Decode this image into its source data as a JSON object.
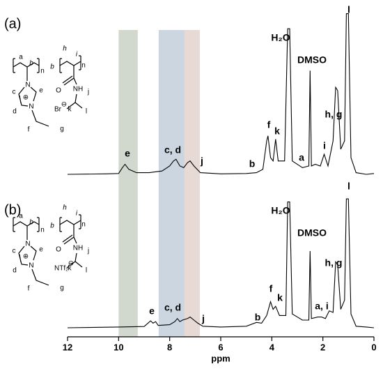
{
  "chart_data": [
    {
      "type": "line",
      "panel_label": "(a)",
      "color": "#000000",
      "xlim": [
        12,
        0
      ],
      "ylim": [
        0,
        100
      ],
      "x": [
        12,
        10.5,
        10.0,
        9.85,
        9.75,
        9.6,
        9.3,
        8.8,
        8.3,
        8.0,
        7.85,
        7.75,
        7.6,
        7.45,
        7.3,
        7.2,
        7.05,
        6.8,
        6.0,
        5.0,
        4.6,
        4.35,
        4.2,
        4.15,
        4.05,
        3.95,
        3.85,
        3.75,
        3.5,
        3.38,
        3.3,
        3.2,
        2.8,
        2.55,
        2.5,
        2.45,
        2.3,
        2.1,
        1.95,
        1.8,
        1.6,
        1.5,
        1.42,
        1.3,
        1.15,
        1.08,
        1.0,
        0.9,
        0.7,
        0.3,
        0
      ],
      "values": [
        0,
        0.3,
        0.5,
        4,
        6,
        3,
        1,
        1,
        2,
        5,
        8,
        9,
        5,
        4,
        7,
        8,
        5,
        1,
        0.3,
        0.5,
        1,
        3,
        20,
        23,
        10,
        8,
        21,
        8,
        8,
        87,
        87,
        8,
        4,
        5,
        62,
        5,
        6,
        5,
        12,
        5,
        20,
        52,
        50,
        15,
        20,
        96,
        96,
        10,
        1,
        0,
        0.5
      ],
      "annotations": [
        "e",
        "c, d",
        "j",
        "b",
        "f",
        "k",
        "H₂O",
        "DMSO",
        "a",
        "i",
        "h, g",
        "l"
      ],
      "bands": [
        {
          "range": [
            10.0,
            9.25
          ],
          "color": "#c9d2c6"
        },
        {
          "range": [
            8.43,
            7.42
          ],
          "color": "#c2cfda"
        },
        {
          "range": [
            7.42,
            6.82
          ],
          "color": "#e3d2cc"
        }
      ],
      "structure": [
        "a",
        "b",
        "n",
        "b",
        "h",
        "i",
        "n",
        "O",
        "NH",
        "j",
        "k",
        "l",
        "c",
        "e",
        "d",
        "f",
        "g",
        "N",
        "N",
        "Br",
        "⊖",
        "⊕"
      ]
    },
    {
      "type": "line",
      "panel_label": "(b)",
      "color": "#000000",
      "xlim": [
        12,
        0
      ],
      "ylim": [
        0,
        100
      ],
      "xticks": [
        12,
        10,
        8,
        6,
        4,
        2,
        0
      ],
      "xlabel": "ppm",
      "x": [
        12,
        10,
        9.0,
        8.85,
        8.75,
        8.65,
        8.55,
        8.45,
        8.0,
        7.8,
        7.7,
        7.6,
        7.5,
        7.3,
        7.2,
        7.05,
        6.9,
        6.7,
        6.0,
        5.0,
        4.6,
        4.4,
        4.2,
        4.05,
        3.95,
        3.85,
        3.7,
        3.45,
        3.38,
        3.3,
        3.2,
        2.8,
        2.55,
        2.5,
        2.45,
        2.2,
        2.05,
        1.9,
        1.75,
        1.6,
        1.5,
        1.42,
        1.3,
        1.15,
        1.08,
        1.0,
        0.9,
        0.7,
        0.3,
        0
      ],
      "values": [
        0,
        0.5,
        0.8,
        3,
        4.5,
        3,
        4,
        1.5,
        2,
        4,
        6,
        4,
        5,
        6,
        7,
        5,
        3,
        1,
        0.5,
        1,
        3.5,
        3,
        8,
        17,
        12,
        14,
        8,
        8,
        82,
        82,
        9,
        5,
        5,
        50,
        6,
        7,
        7,
        6,
        11,
        10,
        43,
        41,
        12,
        18,
        84,
        84,
        9,
        1,
        0.5,
        0
      ],
      "annotations": [
        "e",
        "c, d",
        "j",
        "b",
        "f",
        "k",
        "H₂O",
        "DMSO",
        "a, i",
        "h, g",
        "l"
      ],
      "structure": [
        "a",
        "b",
        "n",
        "b",
        "h",
        "i",
        "n",
        "O",
        "NH",
        "j",
        "k",
        "l",
        "c",
        "e",
        "d",
        "f",
        "g",
        "N",
        "N",
        "NTf₂",
        "⊖",
        "⊕"
      ]
    }
  ]
}
